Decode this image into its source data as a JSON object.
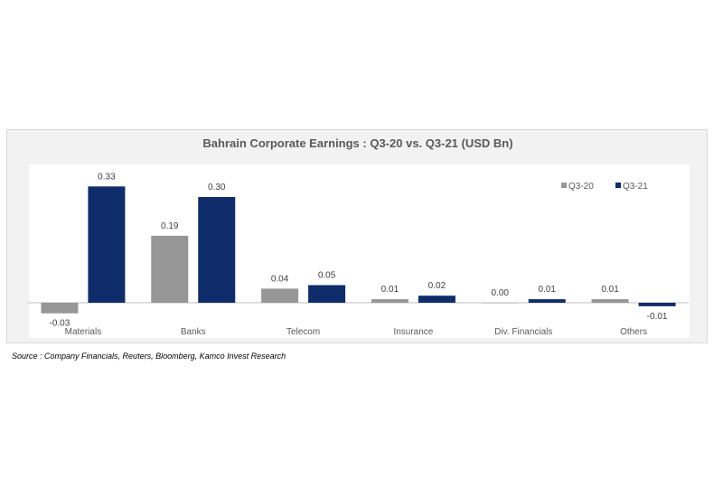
{
  "chart_data": {
    "type": "bar",
    "title": "Bahrain Corporate Earnings : Q3-20 vs. Q3-21 (USD Bn)",
    "categories": [
      "Materials",
      "Banks",
      "Telecom",
      "Insurance",
      "Div. Financials",
      "Others"
    ],
    "series": [
      {
        "name": "Q3-20",
        "color": "#969696",
        "values": [
          -0.03,
          0.19,
          0.04,
          0.01,
          0.0,
          0.01
        ],
        "labels": [
          "-0.03",
          "0.19",
          "0.04",
          "0.01",
          "0.00",
          "0.01"
        ]
      },
      {
        "name": "Q3-21",
        "color": "#0f2d6b",
        "values": [
          0.33,
          0.3,
          0.05,
          0.02,
          0.01,
          -0.01
        ],
        "labels": [
          "0.33",
          "0.30",
          "0.05",
          "0.02",
          "0.01",
          "-0.01"
        ]
      }
    ],
    "ylim": [
      -0.05,
      0.36
    ],
    "legend": "top-right",
    "grid": false
  },
  "source": "Source : Company Financials, Reuters, Bloomberg, Kamco Invest Research"
}
